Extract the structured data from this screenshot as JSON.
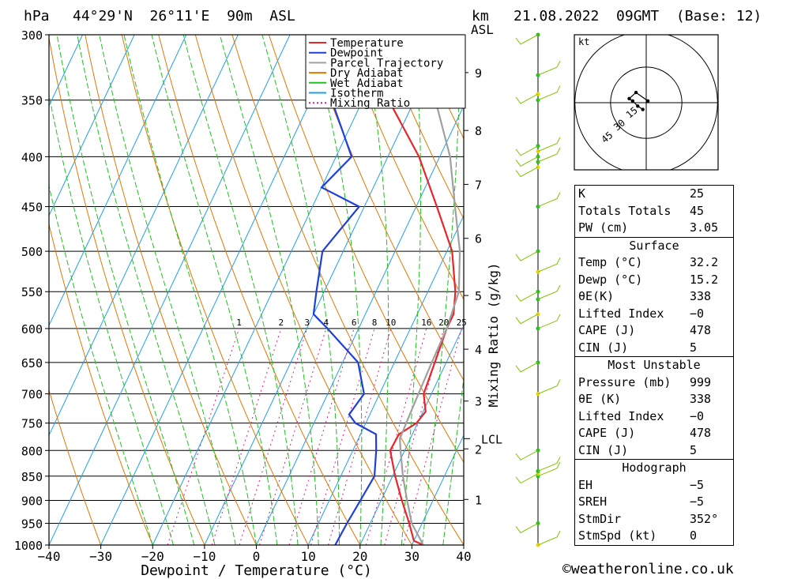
{
  "header": {
    "unit_hpa": "hPa",
    "location": "44°29'N  26°11'E  90m  ASL",
    "unit_km": "km",
    "unit_asl": "ASL",
    "datetime": "21.08.2022  09GMT  (Base: 12)"
  },
  "chart_data": {
    "type": "skewt",
    "xlabel": "Dewpoint / Temperature (°C)",
    "ylabel_right": "Mixing Ratio (g/kg)",
    "xlim": [
      -40,
      40
    ],
    "pressure_range": [
      300,
      1000
    ],
    "x_ticks": [
      "−40",
      "−30",
      "−20",
      "−10",
      "0",
      "10",
      "20",
      "30",
      "40"
    ],
    "pressure_ticks": [
      300,
      350,
      400,
      450,
      500,
      550,
      600,
      650,
      700,
      750,
      800,
      850,
      900,
      950,
      1000
    ],
    "km_ticks": [
      {
        "label": "9",
        "p": 328
      },
      {
        "label": "8",
        "p": 376
      },
      {
        "label": "7",
        "p": 427
      },
      {
        "label": "6",
        "p": 485
      },
      {
        "label": "5",
        "p": 555
      },
      {
        "label": "4",
        "p": 630
      },
      {
        "label": "3",
        "p": 712
      },
      {
        "label": "2",
        "p": 797
      },
      {
        "label": "1",
        "p": 898
      }
    ],
    "lcl": {
      "label": "LCL",
      "p": 778
    },
    "mixing_ratio_labels": [
      "1",
      "2",
      "3",
      "4",
      "6",
      "8",
      "10",
      "16",
      "20",
      "25"
    ],
    "legend": [
      {
        "name": "Temperature",
        "color": "#e8262a",
        "style": "solid"
      },
      {
        "name": "Dewpoint",
        "color": "#1f3fd8",
        "style": "solid"
      },
      {
        "name": "Parcel Trajectory",
        "color": "#a0a0a0",
        "style": "solid"
      },
      {
        "name": "Dry Adiabat",
        "color": "#e07800",
        "style": "solid"
      },
      {
        "name": "Wet Adiabat",
        "color": "#20c020",
        "style": "solid"
      },
      {
        "name": "Isotherm",
        "color": "#20a0e8",
        "style": "solid"
      },
      {
        "name": "Mixing Ratio",
        "color": "#d8208a",
        "style": "dotted"
      }
    ],
    "series": [
      {
        "name": "Temperature",
        "color": "#e8262a",
        "points": [
          [
            1000,
            32.2
          ],
          [
            990,
            30.0
          ],
          [
            950,
            27.5
          ],
          [
            900,
            24.0
          ],
          [
            850,
            20.5
          ],
          [
            800,
            17.2
          ],
          [
            770,
            17.4
          ],
          [
            750,
            19.8
          ],
          [
            730,
            20.5
          ],
          [
            700,
            18.5
          ],
          [
            650,
            17.8
          ],
          [
            600,
            17.0
          ],
          [
            580,
            17.0
          ],
          [
            550,
            15.3
          ],
          [
            500,
            11.0
          ],
          [
            450,
            4.0
          ],
          [
            400,
            -4.0
          ],
          [
            350,
            -15.0
          ],
          [
            320,
            -18.0
          ],
          [
            300,
            -22.5
          ]
        ]
      },
      {
        "name": "Dewpoint",
        "color": "#1f3fd8",
        "points": [
          [
            1000,
            15.2
          ],
          [
            950,
            15.5
          ],
          [
            900,
            16.0
          ],
          [
            850,
            16.5
          ],
          [
            800,
            14.5
          ],
          [
            770,
            13.0
          ],
          [
            750,
            8.0
          ],
          [
            735,
            6.0
          ],
          [
            700,
            7.0
          ],
          [
            650,
            3.0
          ],
          [
            600,
            -6.0
          ],
          [
            580,
            -10.0
          ],
          [
            550,
            -11.5
          ],
          [
            500,
            -14.0
          ],
          [
            450,
            -11.0
          ],
          [
            430,
            -20.0
          ],
          [
            400,
            -17.0
          ],
          [
            350,
            -26.0
          ],
          [
            300,
            -32.0
          ]
        ]
      },
      {
        "name": "Parcel Trajectory",
        "color": "#a0a0a0",
        "points": [
          [
            1000,
            32.2
          ],
          [
            950,
            28.0
          ],
          [
            900,
            25.0
          ],
          [
            850,
            22.0
          ],
          [
            800,
            19.2
          ],
          [
            778,
            18.0
          ],
          [
            750,
            17.8
          ],
          [
            700,
            17.5
          ],
          [
            650,
            17.2
          ],
          [
            600,
            17.0
          ],
          [
            550,
            16.0
          ],
          [
            500,
            12.5
          ],
          [
            450,
            7.5
          ],
          [
            400,
            2.0
          ],
          [
            350,
            -6.0
          ],
          [
            300,
            -15.0
          ]
        ]
      }
    ]
  },
  "legend_labels": [
    "Temperature",
    "Dewpoint",
    "Parcel Trajectory",
    "Dry Adiabat",
    "Wet Adiabat",
    "Isotherm",
    "Mixing Ratio"
  ],
  "hodograph": {
    "unit": "kt",
    "ring_labels": [
      "15",
      "30",
      "45"
    ],
    "points": [
      [
        -1.0,
        -2.0
      ],
      [
        -2.5,
        -1.0
      ],
      [
        -4.0,
        0.5
      ],
      [
        -5.0,
        1.2
      ],
      [
        -3.0,
        3.0
      ],
      [
        0.5,
        0.5
      ]
    ]
  },
  "indices": {
    "rows": [
      {
        "label": "K",
        "value": "25"
      },
      {
        "label": "Totals Totals",
        "value": "45"
      },
      {
        "label": "PW (cm)",
        "value": "3.05"
      }
    ],
    "surface": {
      "title": "Surface",
      "rows": [
        {
          "label": "Temp (°C)",
          "value": "32.2"
        },
        {
          "label": "Dewp (°C)",
          "value": "15.2"
        },
        {
          "label": "θE(K)",
          "value": "338"
        },
        {
          "label": "Lifted Index",
          "value": "−0"
        },
        {
          "label": "CAPE (J)",
          "value": "478"
        },
        {
          "label": "CIN (J)",
          "value": "5"
        }
      ]
    },
    "most_unstable": {
      "title": "Most Unstable",
      "rows": [
        {
          "label": "Pressure (mb)",
          "value": "999"
        },
        {
          "label": "θE (K)",
          "value": "338"
        },
        {
          "label": "Lifted Index",
          "value": "−0"
        },
        {
          "label": "CAPE (J)",
          "value": "478"
        },
        {
          "label": "CIN (J)",
          "value": "5"
        }
      ]
    },
    "hodograph": {
      "title": "Hodograph",
      "rows": [
        {
          "label": "EH",
          "value": "−5"
        },
        {
          "label": "SREH",
          "value": "−5"
        },
        {
          "label": "StmDir",
          "value": "352°"
        },
        {
          "label": "StmSpd (kt)",
          "value": "0"
        }
      ]
    }
  },
  "footer": "©weatheronline.co.uk"
}
